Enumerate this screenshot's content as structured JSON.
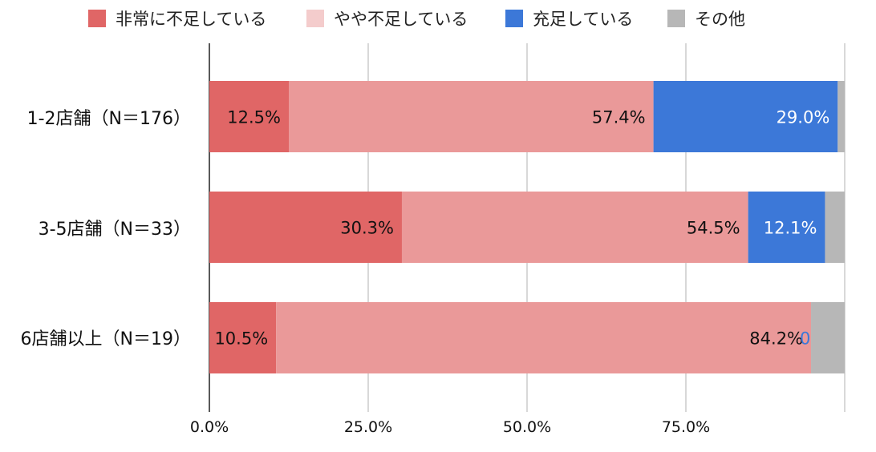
{
  "chart_data": {
    "type": "bar",
    "orientation": "horizontal",
    "stacked": true,
    "categories": [
      "1-2店舗（N＝176）",
      "3-5店舗（N＝33）",
      "6店舗以上（N＝19）"
    ],
    "series": [
      {
        "name": "非常に不足している",
        "color": "#e06666",
        "values": [
          12.5,
          30.3,
          10.5
        ],
        "labels": [
          "12.5%",
          "30.3%",
          "10.5%"
        ]
      },
      {
        "name": "やや不足している",
        "color": "#ea9999",
        "values": [
          57.4,
          54.5,
          84.2
        ],
        "labels": [
          "57.4%",
          "54.5%",
          "84.2%"
        ]
      },
      {
        "name": "充足している",
        "color": "#3c78d8",
        "values": [
          29.0,
          12.1,
          0.0
        ],
        "labels": [
          "29.0%",
          "12.1%",
          "0.0%"
        ]
      },
      {
        "name": "その他",
        "color": "#b7b7b7",
        "values": [
          1.1,
          3.1,
          5.3
        ],
        "labels": [
          "",
          "",
          ""
        ]
      }
    ],
    "xlim": [
      0,
      100
    ],
    "x_ticks": [
      "0.0%",
      "25.0%",
      "50.0%",
      "75.0%"
    ],
    "grid": true,
    "legend_position": "top"
  }
}
